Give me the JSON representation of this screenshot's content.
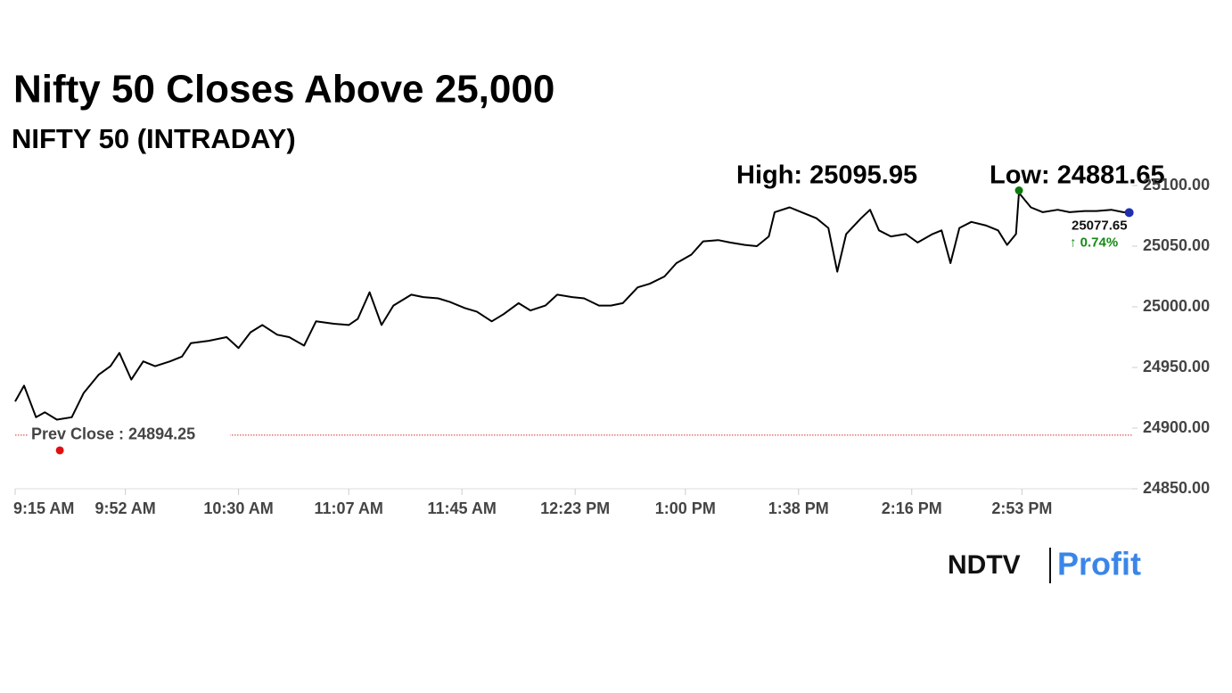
{
  "chart_data": {
    "type": "line",
    "title": "Nifty 50 Closes Above 25,000",
    "subtitle": "NIFTY 50 (INTRADAY)",
    "x": [
      0,
      3,
      7,
      10,
      14,
      19,
      23,
      28,
      32,
      35,
      39,
      43,
      47,
      52,
      56,
      59,
      65,
      71,
      75,
      79,
      83,
      88,
      92,
      97,
      101,
      107,
      112,
      115,
      119,
      123,
      127,
      133,
      137,
      142,
      146,
      151,
      155,
      160,
      164,
      169,
      173,
      178,
      182,
      187,
      191,
      196,
      200,
      204,
      209,
      213,
      218,
      222,
      227,
      231,
      236,
      240,
      245,
      249,
      253,
      255,
      260,
      264,
      269,
      273,
      276,
      279,
      284,
      287,
      290,
      294,
      299,
      303,
      308,
      311,
      314,
      317,
      321,
      326,
      330,
      333,
      336,
      337,
      341,
      345,
      350,
      354,
      359,
      363,
      368,
      372,
      374
    ],
    "series": [
      {
        "name": "NIFTY 50",
        "color": "#000000",
        "values": [
          24922,
          24935,
          24909,
          24913,
          24907,
          24909,
          24929,
          24944,
          24951,
          24962,
          24940,
          24955,
          24951,
          24955,
          24959,
          24970,
          24972,
          24975,
          24966,
          24979,
          24985,
          24977,
          24975,
          24968,
          24988,
          24986,
          24985,
          24990,
          25012,
          24985,
          25001,
          25010,
          25008,
          25007,
          25004,
          24999,
          24996,
          24988,
          24994,
          25003,
          24997,
          25001,
          25010,
          25008,
          25007,
          25001,
          25001,
          25003,
          25016,
          25019,
          25025,
          25036,
          25043,
          25054,
          25055,
          25053,
          25051,
          25050,
          25058,
          25078,
          25082,
          25078,
          25073,
          25065,
          25029,
          25060,
          25073,
          25080,
          25063,
          25058,
          25060,
          25053,
          25060,
          25063,
          25036,
          25065,
          25070,
          25067,
          25063,
          25051,
          25060,
          25094,
          25082,
          25078,
          25080,
          25078,
          25079,
          25079,
          25080,
          25078,
          25077.65
        ]
      }
    ],
    "xlim": [
      0,
      375
    ],
    "ylim": [
      24850,
      25100
    ],
    "xticks": [
      {
        "value": 0,
        "label": "9:15 AM"
      },
      {
        "value": 37,
        "label": "9:52 AM"
      },
      {
        "value": 75,
        "label": "10:30 AM"
      },
      {
        "value": 112,
        "label": "11:07 AM"
      },
      {
        "value": 150,
        "label": "11:45 AM"
      },
      {
        "value": 188,
        "label": "12:23 PM"
      },
      {
        "value": 225,
        "label": "1:00 PM"
      },
      {
        "value": 263,
        "label": "1:38 PM"
      },
      {
        "value": 301,
        "label": "2:16 PM"
      },
      {
        "value": 338,
        "label": "2:53 PM"
      }
    ],
    "yticks": [
      {
        "value": 24850,
        "label": "24850.00"
      },
      {
        "value": 24900,
        "label": "24900.00"
      },
      {
        "value": 24950,
        "label": "24950.00"
      },
      {
        "value": 25000,
        "label": "25000.00"
      },
      {
        "value": 25050,
        "label": "25050.00"
      },
      {
        "value": 25100,
        "label": "25100.00"
      }
    ],
    "high": {
      "label": "High: 25095.95",
      "value": 25095.95,
      "x": 337,
      "color": "#0a7a0a"
    },
    "low": {
      "label": "Low: 24881.65",
      "value": 24881.65,
      "x": 15,
      "color": "#e01010"
    },
    "prev_close": {
      "label": "Prev Close : 24894.25",
      "value": 24894.25,
      "color": "#d03030"
    },
    "last": {
      "label": "25077.65",
      "change": "↑ 0.74%",
      "color": "#1f2fb0",
      "change_color": "#148a14"
    }
  },
  "logo": {
    "left": "NDTV",
    "right": "Profit"
  }
}
